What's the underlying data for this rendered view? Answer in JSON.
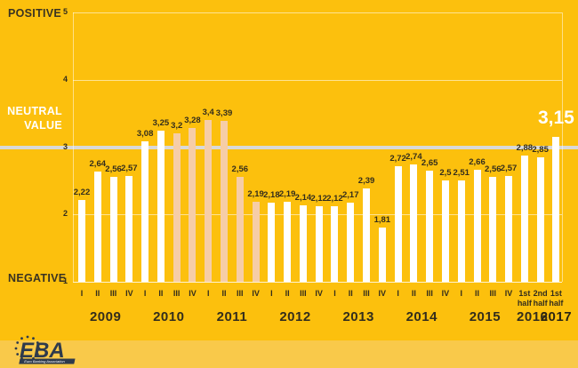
{
  "colors": {
    "background": "#fcc00d",
    "footer_band": "#f9c94a",
    "bar": "#ffffff",
    "bar_highlight": "#f6cda7",
    "neutral_line": "#d9d9d9",
    "text_dark": "#332d1c",
    "text_light": "#ffffff",
    "logo": "#2e3a4c"
  },
  "axis_captions": {
    "top": "POSITIVE",
    "middle": "NEUTRAL VALUE",
    "bottom": "NEGATIVE"
  },
  "logo": {
    "text": "EBA",
    "subtext": "Euro Banking Association"
  },
  "chart_data": {
    "type": "bar",
    "ylabel": "",
    "xlabel": "",
    "ylim": [
      1,
      5
    ],
    "yticks": [
      5,
      4,
      3,
      2,
      1
    ],
    "neutral_value": 3,
    "grid": "horizontal",
    "emphasized_value_label": "3,15",
    "groups": [
      {
        "year": "2009",
        "bold": false,
        "bars": [
          {
            "period": "I",
            "value": 2.22,
            "display": "2,22",
            "highlight": false
          },
          {
            "period": "II",
            "value": 2.64,
            "display": "2,64",
            "highlight": false
          },
          {
            "period": "III",
            "value": 2.56,
            "display": "2,56",
            "highlight": false
          },
          {
            "period": "IV",
            "value": 2.57,
            "display": "2,57",
            "highlight": false
          }
        ]
      },
      {
        "year": "2010",
        "bold": false,
        "bars": [
          {
            "period": "I",
            "value": 3.08,
            "display": "3,08",
            "highlight": false
          },
          {
            "period": "II",
            "value": 3.25,
            "display": "3,25",
            "highlight": false
          },
          {
            "period": "III",
            "value": 3.2,
            "display": "3,2",
            "highlight": true
          },
          {
            "period": "IV",
            "value": 3.28,
            "display": "3,28",
            "highlight": true
          }
        ]
      },
      {
        "year": "2011",
        "bold": false,
        "bars": [
          {
            "period": "I",
            "value": 3.4,
            "display": "3,4",
            "highlight": true
          },
          {
            "period": "II",
            "value": 3.39,
            "display": "3,39",
            "highlight": true
          },
          {
            "period": "III",
            "value": 2.56,
            "display": "2,56",
            "highlight": true
          },
          {
            "period": "IV",
            "value": 2.19,
            "display": "2,19",
            "highlight": true
          }
        ]
      },
      {
        "year": "2012",
        "bold": false,
        "bars": [
          {
            "period": "I",
            "value": 2.18,
            "display": "2,18",
            "highlight": false
          },
          {
            "period": "II",
            "value": 2.19,
            "display": "2,19",
            "highlight": false
          },
          {
            "period": "III",
            "value": 2.14,
            "display": "2,14",
            "highlight": false
          },
          {
            "period": "IV",
            "value": 2.12,
            "display": "2,12",
            "highlight": false
          }
        ]
      },
      {
        "year": "2013",
        "bold": false,
        "bars": [
          {
            "period": "I",
            "value": 2.12,
            "display": "2,12",
            "highlight": false
          },
          {
            "period": "II",
            "value": 2.17,
            "display": "2,17",
            "highlight": false
          },
          {
            "period": "III",
            "value": 2.39,
            "display": "2,39",
            "highlight": false
          },
          {
            "period": "IV",
            "value": 1.81,
            "display": "1,81",
            "highlight": false
          }
        ]
      },
      {
        "year": "2014",
        "bold": false,
        "bars": [
          {
            "period": "I",
            "value": 2.72,
            "display": "2,72",
            "highlight": false
          },
          {
            "period": "II",
            "value": 2.74,
            "display": "2,74",
            "highlight": false
          },
          {
            "period": "III",
            "value": 2.65,
            "display": "2,65",
            "highlight": false
          },
          {
            "period": "IV",
            "value": 2.5,
            "display": "2,5",
            "highlight": false
          }
        ]
      },
      {
        "year": "2015",
        "bold": false,
        "bars": [
          {
            "period": "I",
            "value": 2.51,
            "display": "2,51",
            "highlight": false
          },
          {
            "period": "II",
            "value": 2.66,
            "display": "2,66",
            "highlight": false
          },
          {
            "period": "III",
            "value": 2.56,
            "display": "2,56",
            "highlight": false
          },
          {
            "period": "IV",
            "value": 2.57,
            "display": "2,57",
            "highlight": false
          }
        ]
      },
      {
        "year": "2016",
        "bold": false,
        "bars": [
          {
            "period": "1st half",
            "value": 2.88,
            "display": "2,88",
            "highlight": false
          },
          {
            "period": "2nd half",
            "value": 2.85,
            "display": "2,85",
            "highlight": false
          }
        ]
      },
      {
        "year": "2017",
        "bold": true,
        "bars": [
          {
            "period": "1st half",
            "value": 3.15,
            "display": "3,15",
            "highlight": false,
            "emphasis": true
          }
        ]
      }
    ]
  }
}
